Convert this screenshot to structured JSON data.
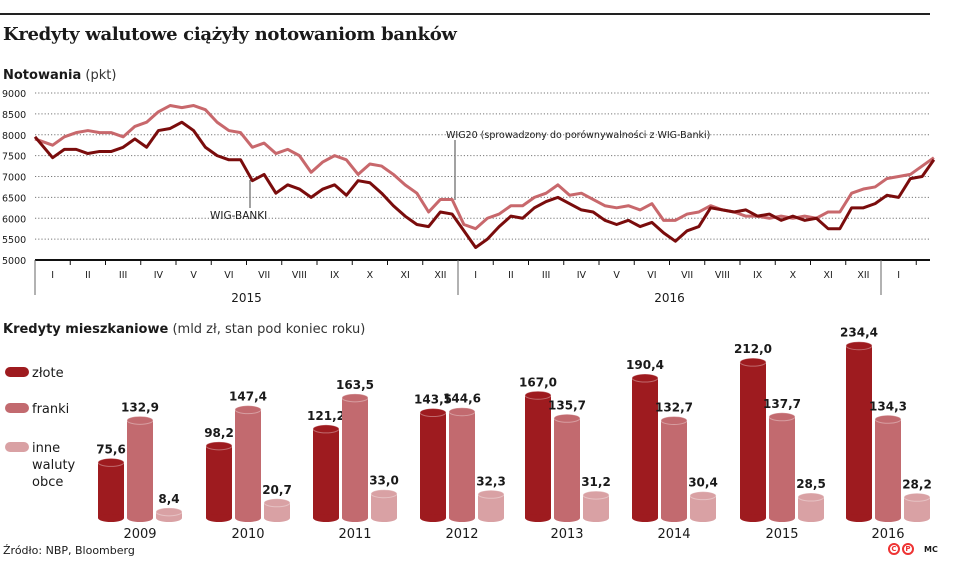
{
  "title": "Kredyty walutowe ciążyły notowaniom banków",
  "source": "Źródło: NBP, Bloomberg",
  "logo": {
    "c": "C",
    "p": "P",
    "author": "MC"
  },
  "colors": {
    "zlote": "#9e1b1f",
    "franki": "#c26a6f",
    "inne": "#d9a1a4",
    "wig_banki": "#7a0c0c",
    "wig20": "#c8686c"
  },
  "chart_data": [
    {
      "type": "line",
      "title": "Notowania",
      "unit": "(pkt)",
      "ylim": [
        5000,
        9000
      ],
      "yticks": [
        "9000",
        "8500",
        "8000",
        "7500",
        "7000",
        "6500",
        "6000",
        "5500",
        "5000"
      ],
      "grid": true,
      "months_2015": [
        "I",
        "II",
        "III",
        "IV",
        "V",
        "VI",
        "VII",
        "VIII",
        "IX",
        "X",
        "XI",
        "XII"
      ],
      "months_2016": [
        "I",
        "II",
        "III",
        "IV",
        "V",
        "VI",
        "VII",
        "VIII",
        "IX",
        "X",
        "XI",
        "XII"
      ],
      "months_2017": [
        "I"
      ],
      "years": [
        "2015",
        "2016"
      ],
      "annotations": {
        "wig_banki": "WIG-BANKI",
        "wig20": "WIG20 (sprowadzony do porównywalności z WIG-Banki)"
      },
      "series": [
        {
          "name": "WIG20",
          "key": "wig20",
          "start": "2015-01",
          "values_by_month_thirds": [
            7900,
            7750,
            7950,
            8050,
            8100,
            8050,
            8050,
            7950,
            8200,
            8300,
            8550,
            8700,
            8650,
            8700,
            8600,
            8300,
            8100,
            8050,
            7700,
            7800,
            7550,
            7650,
            7500,
            7100,
            7350,
            7500,
            7400,
            7050,
            7300,
            7250,
            7050,
            6800,
            6600,
            6150,
            6450,
            6450,
            5850,
            5750,
            6000,
            6100,
            6300,
            6300,
            6500,
            6600,
            6800,
            6550,
            6600,
            6450,
            6300,
            6250,
            6300,
            6200,
            6350,
            5950,
            5950,
            6100,
            6150,
            6300,
            6200,
            6150,
            6050,
            6050,
            6000,
            6050,
            6000,
            6050,
            6000,
            6150,
            6150,
            6600,
            6700,
            6750,
            6950,
            7000,
            7050,
            7250,
            7450
          ]
        },
        {
          "name": "WIG-BANKI",
          "key": "wig_banki",
          "start": "2015-01",
          "values_by_month_thirds": [
            7950,
            7450,
            7650,
            7650,
            7550,
            7600,
            7600,
            7700,
            7900,
            7700,
            8100,
            8150,
            8300,
            8100,
            7700,
            7500,
            7400,
            7400,
            6900,
            7050,
            6600,
            6800,
            6700,
            6500,
            6700,
            6800,
            6550,
            6900,
            6850,
            6600,
            6300,
            6050,
            5850,
            5800,
            6150,
            6100,
            5700,
            5300,
            5500,
            5800,
            6050,
            6000,
            6250,
            6400,
            6500,
            6350,
            6200,
            6150,
            5950,
            5850,
            5950,
            5800,
            5900,
            5650,
            5450,
            5700,
            5800,
            6250,
            6200,
            6150,
            6200,
            6050,
            6100,
            5950,
            6050,
            5950,
            6000,
            5750,
            5750,
            6250,
            6250,
            6350,
            6550,
            6500,
            6950,
            7000,
            7400
          ]
        }
      ]
    },
    {
      "type": "bar",
      "title": "Kredyty mieszkaniowe",
      "unit": "(mld zł, stan pod koniec roku)",
      "categories": [
        "2009",
        "2010",
        "2011",
        "2012",
        "2013",
        "2014",
        "2015",
        "2016"
      ],
      "series": [
        {
          "name": "złote",
          "key": "zlote",
          "values": [
            75.6,
            98.2,
            121.2,
            143.5,
            167.0,
            190.4,
            212.0,
            234.4
          ],
          "labels": [
            "75,6",
            "98,2",
            "121,2",
            "143,5",
            "167,0",
            "190,4",
            "212,0",
            "234,4"
          ]
        },
        {
          "name": "franki",
          "key": "franki",
          "values": [
            132.9,
            147.4,
            163.5,
            144.6,
            135.7,
            132.7,
            137.7,
            134.3
          ],
          "labels": [
            "132,9",
            "147,4",
            "163,5",
            "144,6",
            "135,7",
            "132,7",
            "137,7",
            "134,3"
          ]
        },
        {
          "name": "inne waluty obce",
          "key": "inne",
          "values": [
            8.4,
            20.7,
            33.0,
            32.3,
            31.2,
            30.4,
            28.5,
            28.2
          ],
          "labels": [
            "8,4",
            "20,7",
            "33,0",
            "32,3",
            "31,2",
            "30,4",
            "28,5",
            "28,2"
          ]
        }
      ],
      "legend_lines": {
        "zlote": [
          "złote"
        ],
        "franki": [
          "franki"
        ],
        "inne": [
          "inne",
          "waluty",
          "obce"
        ]
      },
      "legend": "left"
    }
  ]
}
